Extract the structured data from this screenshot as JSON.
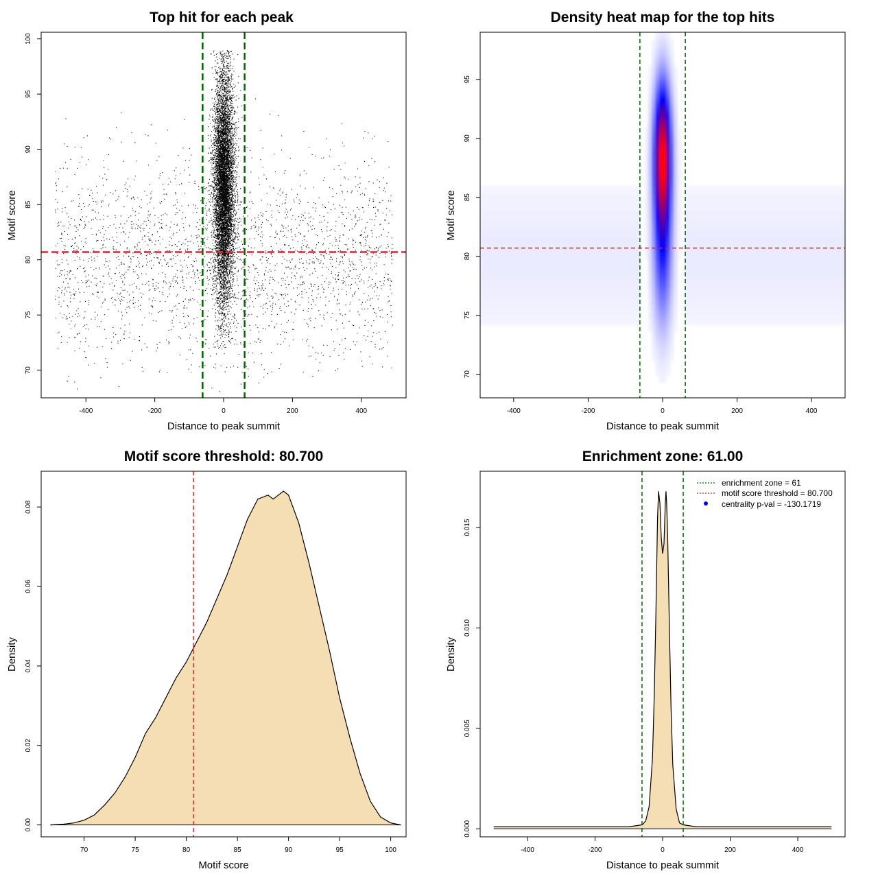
{
  "colors": {
    "vline": "#006400",
    "hline": "#d62728",
    "fill": "#f5deb3",
    "heat_low": "#ffffff",
    "heat_mid": "#0000ff",
    "heat_high": "#ff0000",
    "legend_point": "#0000ff"
  },
  "chart_data": [
    {
      "type": "scatter",
      "title": "Top hit for each peak",
      "xlabel": "Distance to peak summit",
      "ylabel": "Motif score",
      "xlim": [
        -530,
        530
      ],
      "ylim": [
        67.5,
        100.6
      ],
      "xticks": [
        -400,
        -200,
        0,
        200,
        400
      ],
      "yticks": [
        70,
        75,
        80,
        85,
        90,
        95,
        100
      ],
      "vlines": [
        -61,
        61
      ],
      "hline": 80.7,
      "grid": false,
      "points_summary": {
        "dense_core": {
          "x_center": 0,
          "x_sd": 15,
          "y_range": [
            72,
            99
          ]
        },
        "background": {
          "x_range": [
            -490,
            490
          ],
          "y_range": [
            68,
            98
          ]
        }
      }
    },
    {
      "type": "heatmap",
      "title": "Density heat map for the top hits",
      "xlabel": "Distance to peak summit",
      "ylabel": "Motif score",
      "xlim": [
        -490,
        490
      ],
      "ylim": [
        68,
        99
      ],
      "xticks": [
        -400,
        -200,
        0,
        200,
        400
      ],
      "yticks": [
        70,
        75,
        80,
        85,
        90,
        95
      ],
      "vlines": [
        -61,
        61
      ],
      "hline": 80.7,
      "grid": false,
      "peak": {
        "x": 0,
        "y": 88.5
      }
    },
    {
      "type": "area",
      "title": "Motif score threshold: 80.700",
      "xlabel": "Motif score",
      "ylabel": "Density",
      "xlim": [
        65.8,
        101.5
      ],
      "ylim": [
        -0.003,
        0.089
      ],
      "xticks": [
        70,
        75,
        80,
        85,
        90,
        95,
        100
      ],
      "yticks": [
        0.0,
        0.02,
        0.04,
        0.06,
        0.08
      ],
      "ytick_labels": [
        "0.00",
        "0.02",
        "0.04",
        "0.06",
        "0.08"
      ],
      "vline": 80.7,
      "grid": false,
      "x": [
        66.7,
        68,
        69,
        70,
        71,
        72,
        73,
        74,
        75,
        76,
        77,
        78,
        79,
        80,
        81,
        82,
        83,
        84,
        85,
        86,
        87,
        88,
        88.5,
        89,
        89.5,
        90,
        91,
        92,
        93,
        94,
        95,
        96,
        97,
        98,
        99,
        100,
        101
      ],
      "y": [
        0.0,
        0.0002,
        0.0005,
        0.0012,
        0.0025,
        0.005,
        0.008,
        0.012,
        0.017,
        0.023,
        0.027,
        0.032,
        0.037,
        0.041,
        0.046,
        0.051,
        0.057,
        0.063,
        0.07,
        0.077,
        0.082,
        0.083,
        0.082,
        0.083,
        0.084,
        0.083,
        0.076,
        0.066,
        0.055,
        0.044,
        0.032,
        0.022,
        0.013,
        0.006,
        0.002,
        0.0005,
        0.0
      ]
    },
    {
      "type": "area",
      "title": "Enrichment zone: 61.00",
      "xlabel": "Distance to peak summit",
      "ylabel": "Density",
      "xlim": [
        -540,
        540
      ],
      "ylim": [
        -0.0004,
        0.0178
      ],
      "xticks": [
        -400,
        -200,
        0,
        200,
        400
      ],
      "yticks": [
        0.0,
        0.005,
        0.01,
        0.015
      ],
      "ytick_labels": [
        "0.000",
        "0.005",
        "0.010",
        "0.015"
      ],
      "vlines": [
        -61,
        61
      ],
      "grid": false,
      "legend_position": "top-right",
      "legend": [
        {
          "label": "enrichment zone = 61",
          "style": "dotted-green"
        },
        {
          "label": "motif score threshold = 80.700",
          "style": "dotted-red"
        },
        {
          "label": "centrality p-val = -130.1719",
          "style": "blue-point"
        }
      ],
      "x": [
        -500,
        -100,
        -60,
        -50,
        -40,
        -30,
        -25,
        -20,
        -15,
        -12,
        -8,
        -4,
        0,
        4,
        8,
        10,
        12,
        15,
        20,
        25,
        30,
        40,
        50,
        60,
        100,
        500
      ],
      "y": [
        0.0001,
        0.0001,
        0.0002,
        0.0004,
        0.0011,
        0.0035,
        0.0065,
        0.0105,
        0.0155,
        0.0168,
        0.0162,
        0.0145,
        0.0137,
        0.0142,
        0.0162,
        0.0168,
        0.0162,
        0.0145,
        0.01,
        0.006,
        0.0032,
        0.001,
        0.0003,
        0.0002,
        0.0001,
        0.0001
      ]
    }
  ]
}
